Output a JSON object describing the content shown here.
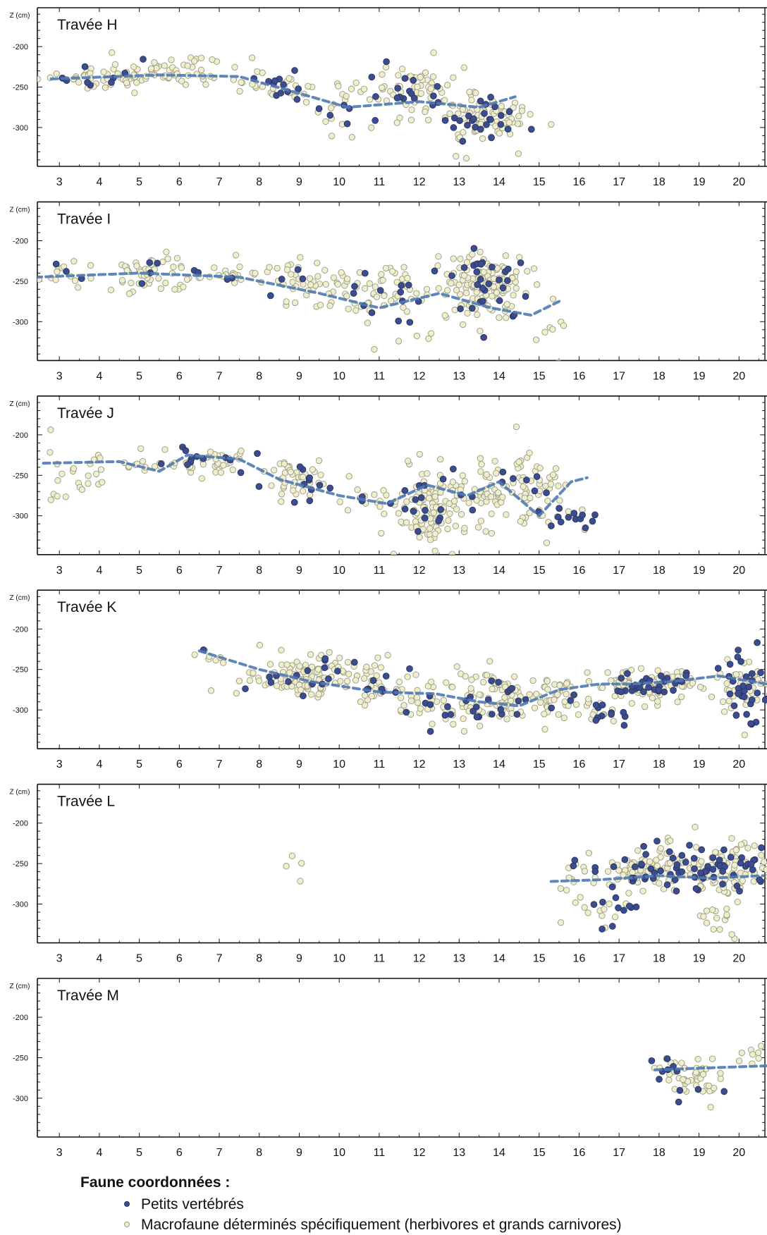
{
  "chart_data": {
    "type": "scatter",
    "x_ticks": [
      "3",
      "4",
      "5",
      "6",
      "7",
      "8",
      "9",
      "10",
      "11",
      "12",
      "13",
      "14",
      "15",
      "16",
      "17",
      "18",
      "19",
      "20"
    ],
    "y_ticks": [
      "-200",
      "-250",
      "-300"
    ],
    "ylabel": "Z (cm)",
    "ylim": [
      -348,
      -152
    ],
    "xlim": [
      2.45,
      20.7
    ],
    "grid": false,
    "series_names": [
      "Petits vertébrés",
      "Macrofaune déterminés spécifiquement (herbivores et grands carnivores)"
    ],
    "colors": {
      "small": "#3c4d8f",
      "macro": "#efefce",
      "trend": "#4f79b3"
    },
    "panels": [
      {
        "title": "Travée H",
        "clusters": [
          {
            "cx": 3.9,
            "cz": -237,
            "sx": 0.7,
            "sz": 6,
            "n": 45,
            "small": 0.18
          },
          {
            "cx": 5.7,
            "cz": -233,
            "sx": 0.9,
            "sz": 10,
            "n": 60,
            "small": 0.03
          },
          {
            "cx": 8.5,
            "cz": -248,
            "sx": 0.55,
            "sz": 10,
            "n": 40,
            "small": 0.35
          },
          {
            "cx": 10.0,
            "cz": -285,
            "sx": 0.4,
            "sz": 16,
            "n": 18,
            "small": 0.15
          },
          {
            "cx": 11.7,
            "cz": -252,
            "sx": 0.65,
            "sz": 16,
            "n": 80,
            "small": 0.2
          },
          {
            "cx": 13.5,
            "cz": -290,
            "sx": 0.55,
            "sz": 16,
            "n": 110,
            "small": 0.25
          }
        ],
        "trend": [
          [
            2.8,
            -240
          ],
          [
            5.5,
            -235
          ],
          [
            7.5,
            -237
          ],
          [
            9.3,
            -262
          ],
          [
            10.2,
            -275
          ],
          [
            12.0,
            -268
          ],
          [
            13.5,
            -275
          ],
          [
            14.4,
            -262
          ]
        ]
      },
      {
        "title": "Travée I",
        "clusters": [
          {
            "cx": 3.2,
            "cz": -240,
            "sx": 0.45,
            "sz": 8,
            "n": 14,
            "small": 0.02
          },
          {
            "cx": 5.2,
            "cz": -240,
            "sx": 0.8,
            "sz": 11,
            "n": 60,
            "small": 0.12
          },
          {
            "cx": 7.3,
            "cz": -243,
            "sx": 0.45,
            "sz": 8,
            "n": 25,
            "small": 0.05
          },
          {
            "cx": 8.8,
            "cz": -250,
            "sx": 0.55,
            "sz": 15,
            "n": 40,
            "small": 0.15
          },
          {
            "cx": 10.3,
            "cz": -265,
            "sx": 0.45,
            "sz": 15,
            "n": 30,
            "small": 0.1
          },
          {
            "cx": 11.5,
            "cz": -260,
            "sx": 0.55,
            "sz": 22,
            "n": 55,
            "small": 0.25
          },
          {
            "cx": 13.7,
            "cz": -255,
            "sx": 0.55,
            "sz": 20,
            "n": 160,
            "small": 0.17
          },
          {
            "cx": 15.2,
            "cz": -315,
            "sx": 0.2,
            "sz": 20,
            "n": 10,
            "small": 0.0
          }
        ],
        "trend": [
          [
            2.4,
            -245
          ],
          [
            5.0,
            -240
          ],
          [
            7.5,
            -245
          ],
          [
            9.5,
            -265
          ],
          [
            11.0,
            -283
          ],
          [
            12.5,
            -265
          ],
          [
            13.8,
            -283
          ],
          [
            14.8,
            -292
          ],
          [
            15.5,
            -275
          ]
        ]
      },
      {
        "title": "Travée J",
        "clusters": [
          {
            "cx": 3.4,
            "cz": -250,
            "sx": 0.4,
            "sz": 16,
            "n": 22,
            "small": 0.0
          },
          {
            "cx": 5.0,
            "cz": -238,
            "sx": 0.6,
            "sz": 8,
            "n": 20,
            "small": 0.05
          },
          {
            "cx": 6.8,
            "cz": -233,
            "sx": 0.45,
            "sz": 8,
            "n": 40,
            "small": 0.2
          },
          {
            "cx": 9.0,
            "cz": -255,
            "sx": 0.5,
            "sz": 13,
            "n": 55,
            "small": 0.2
          },
          {
            "cx": 10.7,
            "cz": -283,
            "sx": 0.4,
            "sz": 8,
            "n": 14,
            "small": 0.2
          },
          {
            "cx": 12.3,
            "cz": -290,
            "sx": 0.5,
            "sz": 24,
            "n": 120,
            "small": 0.1
          },
          {
            "cx": 13.7,
            "cz": -265,
            "sx": 0.55,
            "sz": 22,
            "n": 70,
            "small": 0.05
          },
          {
            "cx": 15.0,
            "cz": -275,
            "sx": 0.35,
            "sz": 22,
            "n": 55,
            "small": 0.12
          },
          {
            "cx": 16.1,
            "cz": -305,
            "sx": 0.2,
            "sz": 8,
            "n": 12,
            "small": 0.75
          }
        ],
        "trend": [
          [
            2.6,
            -235
          ],
          [
            4.5,
            -233
          ],
          [
            5.5,
            -245
          ],
          [
            6.2,
            -225
          ],
          [
            7.5,
            -230
          ],
          [
            8.5,
            -255
          ],
          [
            10.0,
            -275
          ],
          [
            11.2,
            -285
          ],
          [
            12.2,
            -262
          ],
          [
            13.2,
            -275
          ],
          [
            14.0,
            -258
          ],
          [
            15.0,
            -300
          ],
          [
            15.8,
            -258
          ],
          [
            16.2,
            -253
          ]
        ]
      },
      {
        "title": "Travée K",
        "clusters": [
          {
            "cx": 6.8,
            "cz": -232,
            "sx": 0.25,
            "sz": 6,
            "n": 8,
            "small": 0.05
          },
          {
            "cx": 9.2,
            "cz": -260,
            "sx": 0.8,
            "sz": 14,
            "n": 140,
            "small": 0.15
          },
          {
            "cx": 11.2,
            "cz": -270,
            "sx": 0.35,
            "sz": 12,
            "n": 25,
            "small": 0.1
          },
          {
            "cx": 12.5,
            "cz": -298,
            "sx": 0.55,
            "sz": 15,
            "n": 45,
            "small": 0.12
          },
          {
            "cx": 14.0,
            "cz": -285,
            "sx": 0.5,
            "sz": 18,
            "n": 90,
            "small": 0.25
          },
          {
            "cx": 15.6,
            "cz": -285,
            "sx": 0.45,
            "sz": 18,
            "n": 45,
            "small": 0.05
          },
          {
            "cx": 16.6,
            "cz": -305,
            "sx": 0.35,
            "sz": 10,
            "n": 20,
            "small": 0.5
          },
          {
            "cx": 17.0,
            "cz": -268,
            "sx": 0.3,
            "sz": 10,
            "n": 25,
            "small": 0.2
          },
          {
            "cx": 18.0,
            "cz": -268,
            "sx": 0.45,
            "sz": 10,
            "n": 80,
            "small": 0.4
          },
          {
            "cx": 20.1,
            "cz": -275,
            "sx": 0.35,
            "sz": 20,
            "n": 80,
            "small": 0.3
          }
        ],
        "trend": [
          [
            6.5,
            -227
          ],
          [
            8.0,
            -250
          ],
          [
            9.3,
            -265
          ],
          [
            11.0,
            -278
          ],
          [
            12.4,
            -280
          ],
          [
            13.5,
            -290
          ],
          [
            14.5,
            -295
          ],
          [
            15.5,
            -275
          ],
          [
            16.5,
            -268
          ],
          [
            17.3,
            -268
          ],
          [
            18.3,
            -265
          ],
          [
            19.5,
            -258
          ],
          [
            20.7,
            -268
          ]
        ]
      },
      {
        "title": "Travée L",
        "clusters": [
          {
            "cx": 8.8,
            "cz": -255,
            "sx": 0.2,
            "sz": 12,
            "n": 4,
            "small": 0.0
          },
          {
            "cx": 15.9,
            "cz": -280,
            "sx": 0.2,
            "sz": 25,
            "n": 14,
            "small": 0.2
          },
          {
            "cx": 16.9,
            "cz": -310,
            "sx": 0.3,
            "sz": 14,
            "n": 20,
            "small": 0.6
          },
          {
            "cx": 17.5,
            "cz": -258,
            "sx": 0.6,
            "sz": 12,
            "n": 70,
            "small": 0.15
          },
          {
            "cx": 18.7,
            "cz": -255,
            "sx": 0.55,
            "sz": 14,
            "n": 90,
            "small": 0.35
          },
          {
            "cx": 19.9,
            "cz": -258,
            "sx": 0.45,
            "sz": 18,
            "n": 80,
            "small": 0.35
          },
          {
            "cx": 19.5,
            "cz": -315,
            "sx": 0.35,
            "sz": 9,
            "n": 15,
            "small": 0.0
          }
        ],
        "trend": [
          [
            15.3,
            -272
          ],
          [
            16.5,
            -270
          ],
          [
            18.0,
            -265
          ],
          [
            19.3,
            -268
          ],
          [
            20.6,
            -265
          ]
        ]
      },
      {
        "title": "Travée M",
        "clusters": [
          {
            "cx": 18.3,
            "cz": -262,
            "sx": 0.2,
            "sz": 8,
            "n": 12,
            "small": 0.4
          },
          {
            "cx": 18.9,
            "cz": -275,
            "sx": 0.3,
            "sz": 14,
            "n": 45,
            "small": 0.05
          },
          {
            "cx": 20.2,
            "cz": -245,
            "sx": 0.3,
            "sz": 10,
            "n": 8,
            "small": 0.15
          }
        ],
        "trend": [
          [
            17.9,
            -265
          ],
          [
            19.0,
            -263
          ],
          [
            20.7,
            -260
          ]
        ]
      }
    ]
  },
  "legend": {
    "title": "Faune coordonnées :",
    "items": [
      {
        "label": "Petits vertébrés"
      },
      {
        "label": "Macrofaune déterminés spécifiquement (herbivores et grands carnivores)"
      }
    ]
  }
}
